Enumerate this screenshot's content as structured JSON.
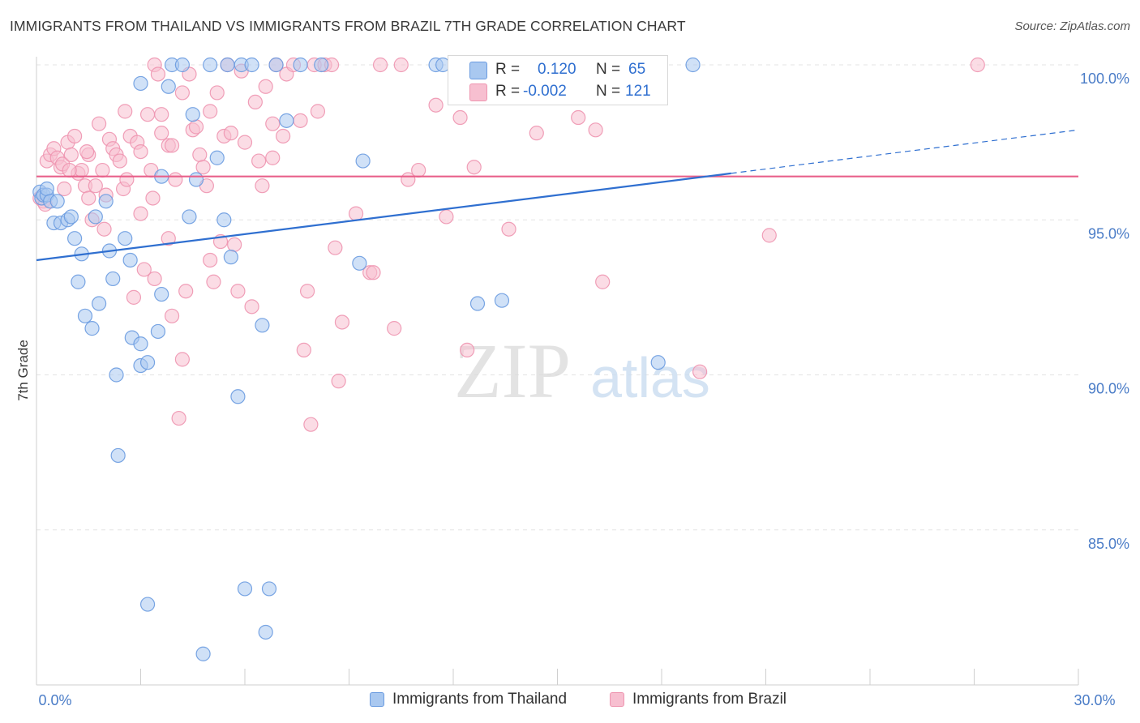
{
  "title": "IMMIGRANTS FROM THAILAND VS IMMIGRANTS FROM BRAZIL 7TH GRADE CORRELATION CHART",
  "source": "Source: ZipAtlas.com",
  "watermark": {
    "zip": "ZIP",
    "atlas": "atlas"
  },
  "stats": {
    "rows": [
      {
        "r_label": "R =",
        "r_value": "0.120",
        "n_label": "N =",
        "n_value": "65"
      },
      {
        "r_label": "R =",
        "r_value": "-0.002",
        "n_label": "N =",
        "n_value": "121"
      }
    ]
  },
  "legend": {
    "thailand": "Immigrants from Thailand",
    "brazil": "Immigrants from Brazil"
  },
  "colors": {
    "thailand_fill": "#a9c8f0",
    "thailand_stroke": "#6a9be0",
    "thailand_line": "#2f6fd0",
    "brazil_fill": "#f7bfd0",
    "brazil_stroke": "#ee95b0",
    "brazil_line": "#e8608a",
    "tick_text": "#4a7cc7",
    "grid": "#e3e3e3"
  },
  "chart_data": {
    "type": "scatter",
    "title": "IMMIGRANTS FROM THAILAND VS IMMIGRANTS FROM BRAZIL 7TH GRADE CORRELATION CHART",
    "xlabel": "",
    "ylabel": "7th Grade",
    "xlim": [
      0,
      30
    ],
    "ylim": [
      80.5,
      100.5
    ],
    "x_tick_labels": [
      "0.0%",
      "30.0%"
    ],
    "y_ticks": [
      85,
      90,
      95,
      100
    ],
    "y_tick_labels": [
      "85.0%",
      "90.0%",
      "95.0%",
      "100.0%"
    ],
    "grid": true,
    "legend_position": "bottom",
    "series": [
      {
        "name": "Immigrants from Thailand",
        "points": [
          [
            0.1,
            95.9
          ],
          [
            0.15,
            95.7
          ],
          [
            0.2,
            95.8
          ],
          [
            0.3,
            95.8
          ],
          [
            0.3,
            96.0
          ],
          [
            0.4,
            95.6
          ],
          [
            0.5,
            94.9
          ],
          [
            0.6,
            95.6
          ],
          [
            0.7,
            94.9
          ],
          [
            0.9,
            95.0
          ],
          [
            1.0,
            95.1
          ],
          [
            1.1,
            94.4
          ],
          [
            1.2,
            93.0
          ],
          [
            1.3,
            93.9
          ],
          [
            1.4,
            91.9
          ],
          [
            1.6,
            91.5
          ],
          [
            1.7,
            95.1
          ],
          [
            1.8,
            92.3
          ],
          [
            2.0,
            95.6
          ],
          [
            2.1,
            94.0
          ],
          [
            2.2,
            93.1
          ],
          [
            2.3,
            90.0
          ],
          [
            2.35,
            87.4
          ],
          [
            2.55,
            94.4
          ],
          [
            2.7,
            93.7
          ],
          [
            2.75,
            91.2
          ],
          [
            3.0,
            91.0
          ],
          [
            3.0,
            90.3
          ],
          [
            3.2,
            90.4
          ],
          [
            3.2,
            82.6
          ],
          [
            3.5,
            91.4
          ],
          [
            3.6,
            92.6
          ],
          [
            3.6,
            96.4
          ],
          [
            3.8,
            99.3
          ],
          [
            3.9,
            100.0
          ],
          [
            4.2,
            100.0
          ],
          [
            4.4,
            95.1
          ],
          [
            4.5,
            98.4
          ],
          [
            4.6,
            96.3
          ],
          [
            4.8,
            81.0
          ],
          [
            5.0,
            100.0
          ],
          [
            5.2,
            97.0
          ],
          [
            5.4,
            95.0
          ],
          [
            5.5,
            100.0
          ],
          [
            5.6,
            93.8
          ],
          [
            5.8,
            89.3
          ],
          [
            5.9,
            100.0
          ],
          [
            6.2,
            100.0
          ],
          [
            6.0,
            83.1
          ],
          [
            6.5,
            91.6
          ],
          [
            6.6,
            81.7
          ],
          [
            6.7,
            83.1
          ],
          [
            6.9,
            100.0
          ],
          [
            7.2,
            98.2
          ],
          [
            7.6,
            100.0
          ],
          [
            8.2,
            100.0
          ],
          [
            9.3,
            93.6
          ],
          [
            9.4,
            96.9
          ],
          [
            11.5,
            100.0
          ],
          [
            11.7,
            100.0
          ],
          [
            12.7,
            92.3
          ],
          [
            13.4,
            92.4
          ],
          [
            17.9,
            90.4
          ],
          [
            18.9,
            100.0
          ],
          [
            3.0,
            99.4
          ]
        ],
        "trend_line": {
          "x": [
            0,
            30
          ],
          "y": [
            93.7,
            97.9
          ],
          "solid_until_x": 20.0
        }
      },
      {
        "name": "Immigrants from Brazil",
        "points": [
          [
            0.1,
            95.7
          ],
          [
            0.2,
            95.6
          ],
          [
            0.25,
            95.5
          ],
          [
            0.3,
            96.9
          ],
          [
            0.4,
            97.1
          ],
          [
            0.5,
            97.3
          ],
          [
            0.6,
            97.0
          ],
          [
            0.7,
            96.7
          ],
          [
            0.75,
            96.8
          ],
          [
            0.8,
            96.0
          ],
          [
            0.9,
            97.5
          ],
          [
            1.0,
            97.1
          ],
          [
            1.1,
            97.7
          ],
          [
            1.2,
            96.5
          ],
          [
            1.3,
            96.6
          ],
          [
            1.4,
            96.1
          ],
          [
            1.5,
            97.1
          ],
          [
            1.5,
            95.7
          ],
          [
            1.6,
            95.0
          ],
          [
            1.7,
            96.1
          ],
          [
            1.8,
            98.1
          ],
          [
            1.9,
            96.6
          ],
          [
            1.95,
            94.7
          ],
          [
            2.0,
            95.8
          ],
          [
            2.1,
            97.6
          ],
          [
            2.2,
            97.3
          ],
          [
            2.3,
            97.1
          ],
          [
            2.4,
            96.9
          ],
          [
            2.5,
            96.0
          ],
          [
            2.55,
            98.5
          ],
          [
            2.6,
            96.3
          ],
          [
            2.7,
            97.7
          ],
          [
            2.8,
            92.5
          ],
          [
            2.9,
            97.5
          ],
          [
            3.0,
            97.2
          ],
          [
            3.0,
            95.2
          ],
          [
            3.1,
            93.4
          ],
          [
            3.2,
            98.4
          ],
          [
            3.3,
            96.6
          ],
          [
            3.35,
            95.7
          ],
          [
            3.4,
            93.1
          ],
          [
            3.4,
            100.0
          ],
          [
            3.5,
            99.7
          ],
          [
            3.6,
            98.4
          ],
          [
            3.6,
            97.8
          ],
          [
            3.8,
            97.4
          ],
          [
            3.8,
            94.4
          ],
          [
            3.9,
            97.4
          ],
          [
            3.9,
            91.9
          ],
          [
            4.0,
            96.3
          ],
          [
            4.1,
            88.6
          ],
          [
            4.2,
            90.5
          ],
          [
            4.2,
            99.1
          ],
          [
            4.3,
            92.7
          ],
          [
            4.4,
            99.7
          ],
          [
            4.5,
            97.9
          ],
          [
            4.6,
            98.0
          ],
          [
            4.7,
            97.1
          ],
          [
            4.8,
            96.7
          ],
          [
            4.9,
            96.1
          ],
          [
            5.0,
            98.5
          ],
          [
            5.0,
            93.7
          ],
          [
            5.1,
            93.0
          ],
          [
            5.2,
            99.1
          ],
          [
            5.3,
            94.3
          ],
          [
            5.4,
            97.7
          ],
          [
            5.5,
            100.0
          ],
          [
            5.6,
            97.8
          ],
          [
            5.7,
            94.2
          ],
          [
            5.8,
            92.7
          ],
          [
            5.9,
            99.8
          ],
          [
            6.0,
            97.5
          ],
          [
            6.2,
            92.2
          ],
          [
            6.3,
            98.8
          ],
          [
            6.4,
            96.9
          ],
          [
            6.5,
            96.1
          ],
          [
            6.6,
            99.3
          ],
          [
            6.8,
            98.1
          ],
          [
            6.8,
            97.0
          ],
          [
            6.9,
            100.0
          ],
          [
            7.1,
            97.7
          ],
          [
            7.2,
            99.7
          ],
          [
            7.4,
            100.0
          ],
          [
            7.6,
            98.2
          ],
          [
            7.7,
            90.8
          ],
          [
            7.8,
            92.7
          ],
          [
            7.9,
            88.4
          ],
          [
            8.0,
            100.0
          ],
          [
            8.1,
            98.5
          ],
          [
            8.3,
            100.0
          ],
          [
            8.5,
            100.0
          ],
          [
            8.6,
            94.1
          ],
          [
            8.7,
            89.8
          ],
          [
            8.8,
            91.7
          ],
          [
            9.2,
            95.2
          ],
          [
            9.6,
            93.3
          ],
          [
            9.7,
            93.3
          ],
          [
            9.9,
            100.0
          ],
          [
            10.3,
            91.5
          ],
          [
            10.7,
            96.3
          ],
          [
            11.0,
            96.6
          ],
          [
            11.5,
            98.7
          ],
          [
            11.8,
            95.1
          ],
          [
            12.2,
            98.3
          ],
          [
            12.4,
            90.8
          ],
          [
            12.6,
            96.7
          ],
          [
            13.1,
            100.0
          ],
          [
            13.6,
            94.7
          ],
          [
            14.4,
            97.8
          ],
          [
            15.6,
            98.3
          ],
          [
            16.1,
            97.9
          ],
          [
            16.3,
            93.0
          ],
          [
            19.1,
            90.1
          ],
          [
            21.1,
            94.5
          ],
          [
            27.1,
            100.0
          ],
          [
            15.9,
            100.0
          ],
          [
            14.7,
            100.0
          ],
          [
            13.9,
            100.0
          ],
          [
            10.5,
            100.0
          ],
          [
            0.95,
            96.6
          ],
          [
            1.45,
            97.2
          ]
        ],
        "trend_line": {
          "x": [
            0,
            30
          ],
          "y": [
            96.4,
            96.4
          ]
        }
      }
    ]
  }
}
